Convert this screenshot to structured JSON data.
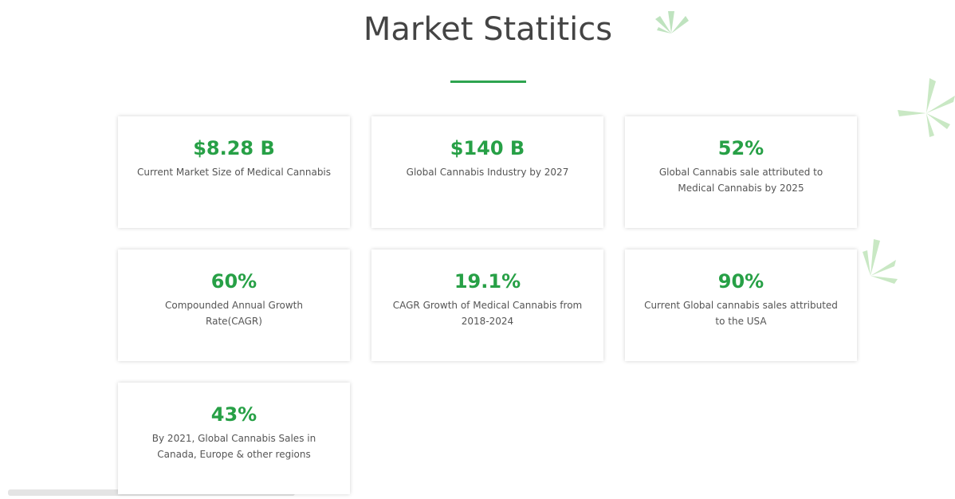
{
  "header": {
    "title": "Market Statitics"
  },
  "cards": [
    {
      "value": "$8.28 B",
      "description": "Current Market Size of Medical Cannabis"
    },
    {
      "value": "$140 B",
      "description": "Global Cannabis Industry by 2027"
    },
    {
      "value": "52%",
      "description": "Global Cannabis sale attributed to Medical Cannabis by 2025"
    },
    {
      "value": "60%",
      "description": "Compounded Annual Growth Rate(CAGR)"
    },
    {
      "value": "19.1%",
      "description": "CAGR Growth of Medical Cannabis from 2018-2024"
    },
    {
      "value": "90%",
      "description": "Current Global cannabis sales attributed to the USA"
    },
    {
      "value": "43%",
      "description": "By 2021, Global Cannabis Sales in Canada, Europe & other regions"
    }
  ]
}
